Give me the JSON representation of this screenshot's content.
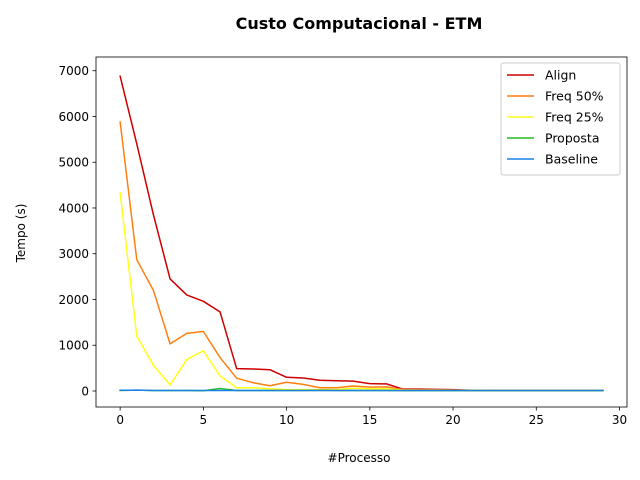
{
  "chart_data": {
    "type": "line",
    "title": "Custo Computacional - ETM",
    "xlabel": "#Processo",
    "ylabel": "Tempo (s)",
    "xlim": [
      -1.45,
      30.45
    ],
    "ylim": [
      -350,
      7300
    ],
    "xticks": [
      0,
      5,
      10,
      15,
      20,
      25,
      30
    ],
    "yticks": [
      0,
      1000,
      2000,
      3000,
      4000,
      5000,
      6000,
      7000
    ],
    "grid": false,
    "legend_position": "top-right",
    "x": [
      0,
      1,
      2,
      3,
      4,
      5,
      6,
      7,
      8,
      9,
      10,
      11,
      12,
      13,
      14,
      15,
      16,
      17,
      18,
      19,
      20,
      21,
      22,
      23,
      24,
      25,
      26,
      27,
      28,
      29
    ],
    "series": [
      {
        "name": "Align",
        "color": "#cc0000",
        "values": [
          6880,
          5400,
          3850,
          2450,
          2100,
          1960,
          1730,
          490,
          480,
          465,
          300,
          285,
          235,
          225,
          215,
          160,
          155,
          40,
          40,
          35,
          30,
          15,
          15,
          12,
          12,
          10,
          10,
          10,
          10,
          10
        ]
      },
      {
        "name": "Freq 50%",
        "color": "#ff7f0e",
        "values": [
          5880,
          2870,
          2200,
          1030,
          1260,
          1300,
          730,
          280,
          180,
          115,
          190,
          145,
          70,
          70,
          110,
          85,
          90,
          30,
          25,
          25,
          20,
          12,
          12,
          10,
          10,
          10,
          10,
          10,
          10,
          10
        ]
      },
      {
        "name": "Freq 25%",
        "color": "#ffff1a",
        "values": [
          4330,
          1200,
          560,
          130,
          690,
          880,
          330,
          70,
          70,
          50,
          30,
          30,
          30,
          30,
          60,
          50,
          50,
          20,
          15,
          15,
          15,
          10,
          10,
          8,
          8,
          8,
          8,
          8,
          8,
          8
        ]
      },
      {
        "name": "Proposta",
        "color": "#22bb22",
        "values": [
          10,
          20,
          10,
          10,
          10,
          5,
          55,
          10,
          12,
          10,
          10,
          12,
          15,
          10,
          10,
          10,
          10,
          8,
          8,
          8,
          8,
          8,
          8,
          8,
          8,
          8,
          8,
          8,
          8,
          8
        ]
      },
      {
        "name": "Baseline",
        "color": "#1a80e6",
        "values": [
          15,
          20,
          12,
          10,
          10,
          10,
          10,
          10,
          10,
          10,
          10,
          10,
          10,
          10,
          10,
          10,
          10,
          10,
          10,
          10,
          10,
          10,
          10,
          10,
          10,
          10,
          10,
          10,
          10,
          10
        ]
      }
    ]
  }
}
